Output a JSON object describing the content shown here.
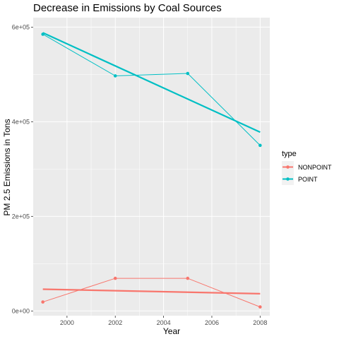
{
  "chart_data": {
    "type": "line",
    "title": "Decrease in Emissions by Coal Sources",
    "xlabel": "Year",
    "ylabel": "PM 2.5 Emissions in Tons",
    "x": [
      1999,
      2002,
      2005,
      2008
    ],
    "xlim": [
      1998.6,
      2008.4
    ],
    "ylim": [
      -10000,
      620000
    ],
    "xticks": [
      2000,
      2002,
      2004,
      2006,
      2008
    ],
    "xtick_labels": [
      "2000",
      "2002",
      "2004",
      "2006",
      "2008"
    ],
    "yticks": [
      0,
      200000,
      400000,
      600000
    ],
    "ytick_labels": [
      "0e+00",
      "2e+05",
      "4e+05",
      "6e+05"
    ],
    "grid": true,
    "legend": {
      "title": "type",
      "position": "right"
    },
    "series": [
      {
        "name": "NONPOINT",
        "color": "#F8766D",
        "values": [
          19000,
          69000,
          69000,
          8500
        ],
        "trend": [
          46000,
          36500
        ]
      },
      {
        "name": "POINT",
        "color": "#00BFC4",
        "values": [
          585000,
          497000,
          502000,
          350000
        ],
        "trend": [
          588000,
          378000
        ]
      }
    ]
  }
}
